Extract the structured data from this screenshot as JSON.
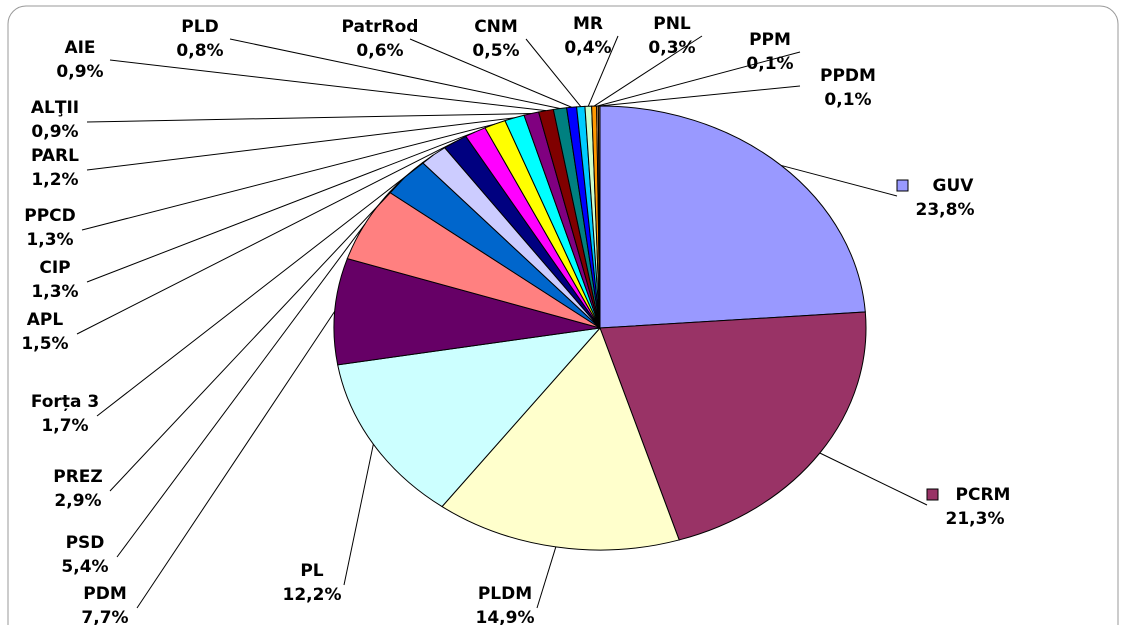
{
  "chart_data": {
    "type": "pie",
    "categories": [
      "GUV",
      "PCRM",
      "PLDM",
      "PL",
      "PDM",
      "PSD",
      "PREZ",
      "Forța 3",
      "APL",
      "CIP",
      "PPCD",
      "PARL",
      "ALŢII",
      "AIE",
      "PLD",
      "PatrRod",
      "CNM",
      "MR",
      "PNL",
      "PPM",
      "PPDM"
    ],
    "values": [
      23.8,
      21.3,
      14.9,
      12.2,
      7.7,
      5.4,
      2.9,
      1.7,
      1.5,
      1.3,
      1.3,
      1.2,
      0.9,
      0.9,
      0.8,
      0.6,
      0.5,
      0.4,
      0.3,
      0.1,
      0.1
    ],
    "value_labels": [
      "23,8%",
      "21,3%",
      "14,9%",
      "12,2%",
      "7,7%",
      "5,4%",
      "2,9%",
      "1,7%",
      "1,5%",
      "1,3%",
      "1,3%",
      "1,2%",
      "0,9%",
      "0,9%",
      "0,8%",
      "0,6%",
      "0,5%",
      "0,4%",
      "0,3%",
      "0,1%",
      "0,1%"
    ],
    "colors": [
      "#9999ff",
      "#993366",
      "#ffffcc",
      "#ccffff",
      "#660066",
      "#ff8080",
      "#0066cc",
      "#ccccff",
      "#000080",
      "#ff00ff",
      "#ffff00",
      "#00ffff",
      "#800080",
      "#800000",
      "#008080",
      "#0000ff",
      "#00ccff",
      "#ccffcc",
      "#ff9900",
      "#ffcc99",
      "#996633"
    ]
  }
}
